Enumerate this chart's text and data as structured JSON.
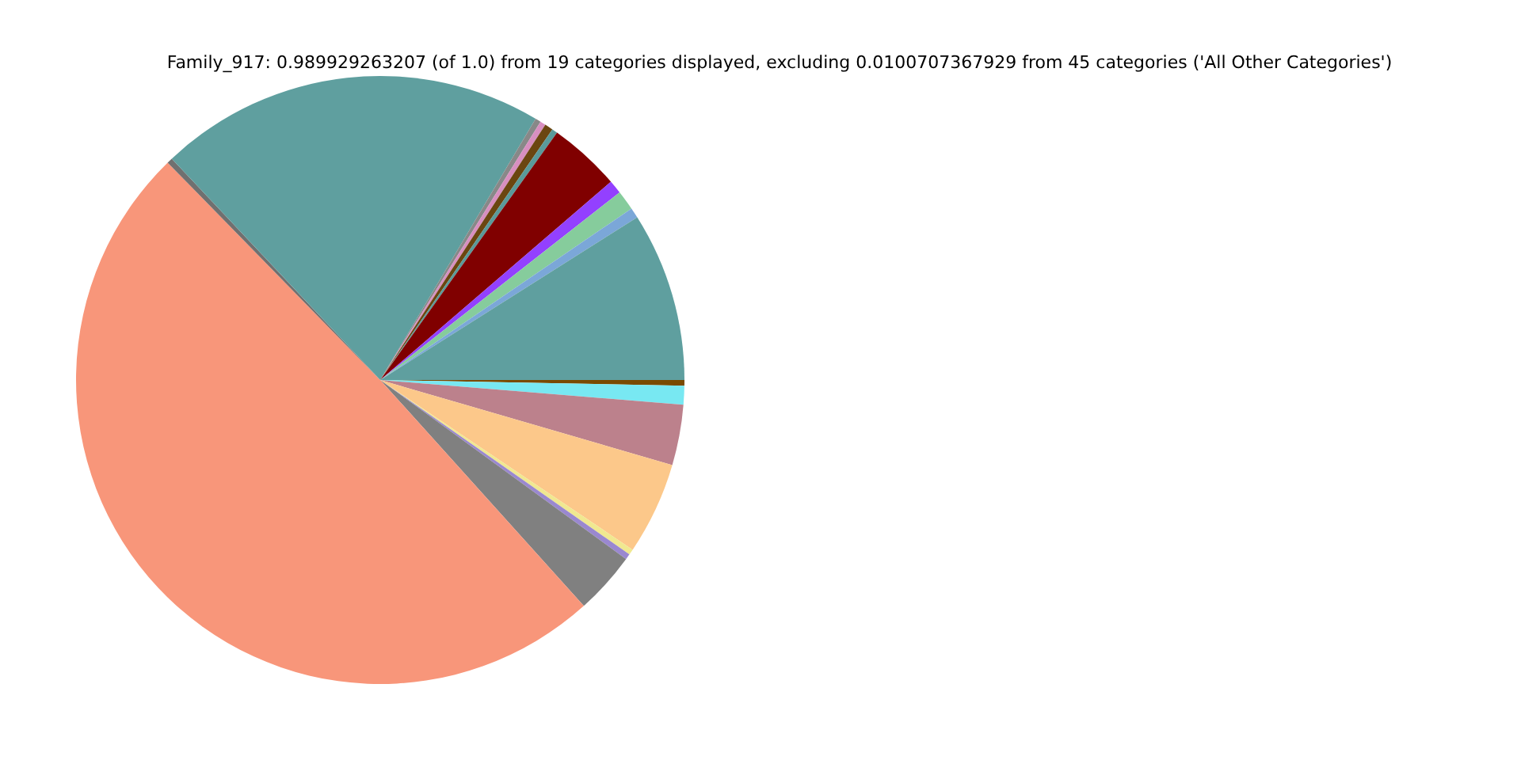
{
  "chart_data": {
    "type": "pie",
    "title": "Family_917: 0.989929263207 (of 1.0) from 19 categories displayed, excluding 0.0100707367929 from 45 categories ('All Other Categories')",
    "categories": [
      null,
      null,
      null,
      null,
      null,
      null,
      null,
      null,
      null,
      null,
      null,
      null,
      null,
      null,
      null,
      null,
      null,
      null,
      null
    ],
    "values": [
      0.3,
      1.0,
      3.22,
      4.92,
      0.3,
      0.3,
      3.31,
      49.42,
      0.3,
      20.58,
      0.3,
      0.3,
      0.44,
      0.3,
      3.83,
      0.72,
      1.05,
      0.55,
      9.0
    ],
    "colors": [
      "#7a4a00",
      "#78e8f2",
      "#bc818c",
      "#fcc88a",
      "#f0e890",
      "#9a88d0",
      "#808080",
      "#f8967a",
      "#707070",
      "#5f9f9f",
      "#888888",
      "#d88fc0",
      "#6b4610",
      "#5a9a9a",
      "#800000",
      "#9340ff",
      "#86cc9c",
      "#7ba7d8",
      "#5f9f9f"
    ]
  }
}
